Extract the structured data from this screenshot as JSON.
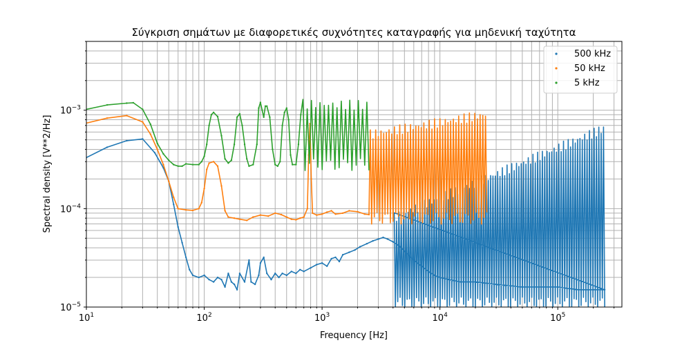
{
  "chart_data": {
    "type": "line",
    "title": "Σύγκριση σημάτων με διαφορετικές συχνότητες καταγραφής για μηδενική ταχύτητα",
    "xlabel": "Frequency [Hz]",
    "ylabel": "Spectral density [V**2/Hz]",
    "x_scale": "log",
    "y_scale": "log",
    "xlim": [
      10,
      350000
    ],
    "ylim": [
      1e-05,
      0.005
    ],
    "grid": "both-major-minor",
    "legend_position": "top-right",
    "x_tick_labels": [
      {
        "value": 10,
        "base": "10",
        "exp": "1"
      },
      {
        "value": 100,
        "base": "10",
        "exp": "2"
      },
      {
        "value": 1000,
        "base": "10",
        "exp": "3"
      },
      {
        "value": 10000,
        "base": "10",
        "exp": "4"
      },
      {
        "value": 100000,
        "base": "10",
        "exp": "5"
      }
    ],
    "y_tick_labels": [
      {
        "value": 1e-05,
        "base": "10",
        "exp": "−5"
      },
      {
        "value": 0.0001,
        "base": "10",
        "exp": "−4"
      },
      {
        "value": 0.001,
        "base": "10",
        "exp": "−3"
      }
    ],
    "series": [
      {
        "name": "500 kHz",
        "color": "#1f77b4",
        "points": [
          [
            10,
            0.00033
          ],
          [
            15,
            0.00042
          ],
          [
            22,
            0.00049
          ],
          [
            30,
            0.00051
          ],
          [
            38,
            0.00037
          ],
          [
            45,
            0.00026
          ],
          [
            50,
            0.00019
          ],
          [
            55,
            0.00011
          ],
          [
            60,
            6.5e-05
          ],
          [
            65,
            4.5e-05
          ],
          [
            70,
            3.2e-05
          ],
          [
            75,
            2.4e-05
          ],
          [
            80,
            2.1e-05
          ],
          [
            90,
            2e-05
          ],
          [
            100,
            2.1e-05
          ],
          [
            110,
            1.9e-05
          ],
          [
            120,
            1.8e-05
          ],
          [
            130,
            2e-05
          ],
          [
            140,
            1.9e-05
          ],
          [
            150,
            1.6e-05
          ],
          [
            160,
            2.2e-05
          ],
          [
            170,
            1.8e-05
          ],
          [
            180,
            1.7e-05
          ],
          [
            190,
            1.5e-05
          ],
          [
            200,
            2.2e-05
          ],
          [
            220,
            1.8e-05
          ],
          [
            240,
            3e-05
          ],
          [
            250,
            1.8e-05
          ],
          [
            270,
            1.7e-05
          ],
          [
            290,
            2.1e-05
          ],
          [
            300,
            2.8e-05
          ],
          [
            320,
            3.2e-05
          ],
          [
            340,
            2.2e-05
          ],
          [
            370,
            1.9e-05
          ],
          [
            400,
            2.2e-05
          ],
          [
            430,
            2e-05
          ],
          [
            460,
            2.2e-05
          ],
          [
            500,
            2.1e-05
          ],
          [
            550,
            2.3e-05
          ],
          [
            600,
            2.2e-05
          ],
          [
            650,
            2.4e-05
          ],
          [
            700,
            2.3e-05
          ],
          [
            800,
            2.5e-05
          ],
          [
            900,
            2.7e-05
          ],
          [
            1000,
            2.8e-05
          ],
          [
            1100,
            2.6e-05
          ],
          [
            1200,
            3.1e-05
          ],
          [
            1300,
            3.2e-05
          ],
          [
            1400,
            2.9e-05
          ],
          [
            1500,
            3.4e-05
          ],
          [
            1700,
            3.6e-05
          ],
          [
            1900,
            3.8e-05
          ],
          [
            2100,
            4.1e-05
          ],
          [
            2400,
            4.4e-05
          ],
          [
            2700,
            4.7e-05
          ],
          [
            3000,
            4.9e-05
          ],
          [
            3300,
            5.1e-05
          ],
          [
            3600,
            4.9e-05
          ],
          [
            4000,
            4.6e-05
          ],
          [
            4500,
            4.2e-05
          ],
          [
            5000,
            3.7e-05
          ],
          [
            5500,
            3.3e-05
          ],
          [
            6000,
            3e-05
          ],
          [
            7000,
            2.6e-05
          ],
          [
            8000,
            2.3e-05
          ],
          [
            9000,
            2.1e-05
          ],
          [
            10000,
            2e-05
          ],
          [
            12000,
            1.9e-05
          ],
          [
            15000,
            1.8e-05
          ],
          [
            20000,
            1.8e-05
          ],
          [
            30000,
            1.7e-05
          ],
          [
            50000,
            1.6e-05
          ],
          [
            100000,
            1.6e-05
          ],
          [
            150000,
            1.5e-05
          ],
          [
            200000,
            1.5e-05
          ],
          [
            250000,
            1.5e-05
          ]
        ],
        "oscillation": {
          "start": 4000,
          "end": 250000,
          "peak_start": 8e-05,
          "peak_end": 0.00065,
          "trough": 1.1e-05,
          "cycles": 90
        }
      },
      {
        "name": "50 kHz",
        "color": "#ff7f0e",
        "points": [
          [
            10,
            0.00074
          ],
          [
            15,
            0.00083
          ],
          [
            22,
            0.00088
          ],
          [
            30,
            0.00076
          ],
          [
            35,
            0.00057
          ],
          [
            40,
            0.0004
          ],
          [
            45,
            0.00028
          ],
          [
            50,
            0.00019
          ],
          [
            55,
            0.00013
          ],
          [
            60,
            0.0001
          ],
          [
            70,
            9.7e-05
          ],
          [
            80,
            9.6e-05
          ],
          [
            90,
            0.0001
          ],
          [
            95,
            0.000115
          ],
          [
            100,
            0.00016
          ],
          [
            105,
            0.00025
          ],
          [
            110,
            0.00029
          ],
          [
            120,
            0.0003
          ],
          [
            130,
            0.00027
          ],
          [
            140,
            0.00017
          ],
          [
            150,
            9.5e-05
          ],
          [
            160,
            8.2e-05
          ],
          [
            180,
            8e-05
          ],
          [
            200,
            7.8e-05
          ],
          [
            230,
            7.6e-05
          ],
          [
            260,
            8.2e-05
          ],
          [
            300,
            8.6e-05
          ],
          [
            350,
            8.4e-05
          ],
          [
            400,
            9e-05
          ],
          [
            450,
            8.7e-05
          ],
          [
            500,
            8.2e-05
          ],
          [
            550,
            7.8e-05
          ],
          [
            600,
            7.7e-05
          ],
          [
            650,
            8e-05
          ],
          [
            700,
            8.2e-05
          ],
          [
            750,
            0.0001
          ],
          [
            770,
            0.00035
          ],
          [
            790,
            0.00073
          ],
          [
            810,
            0.0002
          ],
          [
            830,
            9e-05
          ],
          [
            900,
            8.6e-05
          ],
          [
            1000,
            8.8e-05
          ],
          [
            1100,
            9.2e-05
          ],
          [
            1200,
            9.5e-05
          ],
          [
            1300,
            8.8e-05
          ],
          [
            1500,
            9e-05
          ],
          [
            1700,
            9.5e-05
          ],
          [
            2000,
            9.3e-05
          ],
          [
            2300,
            8.8e-05
          ],
          [
            2500,
            8.7e-05
          ]
        ],
        "oscillation": {
          "start": 2500,
          "end": 25000,
          "peak_start": 0.00056,
          "peak_end": 0.0009,
          "trough": 8e-05,
          "cycles": 44
        }
      },
      {
        "name": "5 kHz",
        "color": "#2ca02c",
        "points": [
          [
            10,
            0.00102
          ],
          [
            15,
            0.00113
          ],
          [
            22,
            0.00118
          ],
          [
            25,
            0.00119
          ],
          [
            30,
            0.00102
          ],
          [
            35,
            0.00072
          ],
          [
            40,
            0.00046
          ],
          [
            45,
            0.00036
          ],
          [
            50,
            0.00031
          ],
          [
            55,
            0.00028
          ],
          [
            60,
            0.00027
          ],
          [
            65,
            0.00027
          ],
          [
            70,
            0.000285
          ],
          [
            80,
            0.00028
          ],
          [
            90,
            0.00028
          ],
          [
            95,
            0.0003
          ],
          [
            100,
            0.00034
          ],
          [
            105,
            0.00045
          ],
          [
            110,
            0.0007
          ],
          [
            115,
            0.0009
          ],
          [
            120,
            0.00095
          ],
          [
            130,
            0.00086
          ],
          [
            140,
            0.00055
          ],
          [
            150,
            0.00032
          ],
          [
            160,
            0.00029
          ],
          [
            170,
            0.00031
          ],
          [
            180,
            0.00045
          ],
          [
            190,
            0.00085
          ],
          [
            200,
            0.00092
          ],
          [
            210,
            0.0007
          ],
          [
            220,
            0.00045
          ],
          [
            230,
            0.00032
          ],
          [
            240,
            0.00027
          ],
          [
            260,
            0.00028
          ],
          [
            280,
            0.00045
          ],
          [
            290,
            0.00105
          ],
          [
            300,
            0.0012
          ],
          [
            310,
            0.001
          ],
          [
            320,
            0.00085
          ],
          [
            330,
            0.0011
          ],
          [
            340,
            0.0011
          ],
          [
            360,
            0.00085
          ],
          [
            380,
            0.0004
          ],
          [
            400,
            0.00028
          ],
          [
            420,
            0.00027
          ],
          [
            440,
            0.0003
          ],
          [
            460,
            0.0007
          ],
          [
            480,
            0.00095
          ],
          [
            500,
            0.00105
          ],
          [
            520,
            0.0008
          ],
          [
            540,
            0.00035
          ],
          [
            560,
            0.00028
          ],
          [
            600,
            0.00028
          ],
          [
            630,
            0.00045
          ],
          [
            660,
            0.0009
          ]
        ],
        "oscillation": {
          "start": 660,
          "end": 2500,
          "peak_start": 0.00115,
          "peak_end": 0.00112,
          "trough": 0.00028,
          "cycles": 16
        }
      }
    ]
  }
}
